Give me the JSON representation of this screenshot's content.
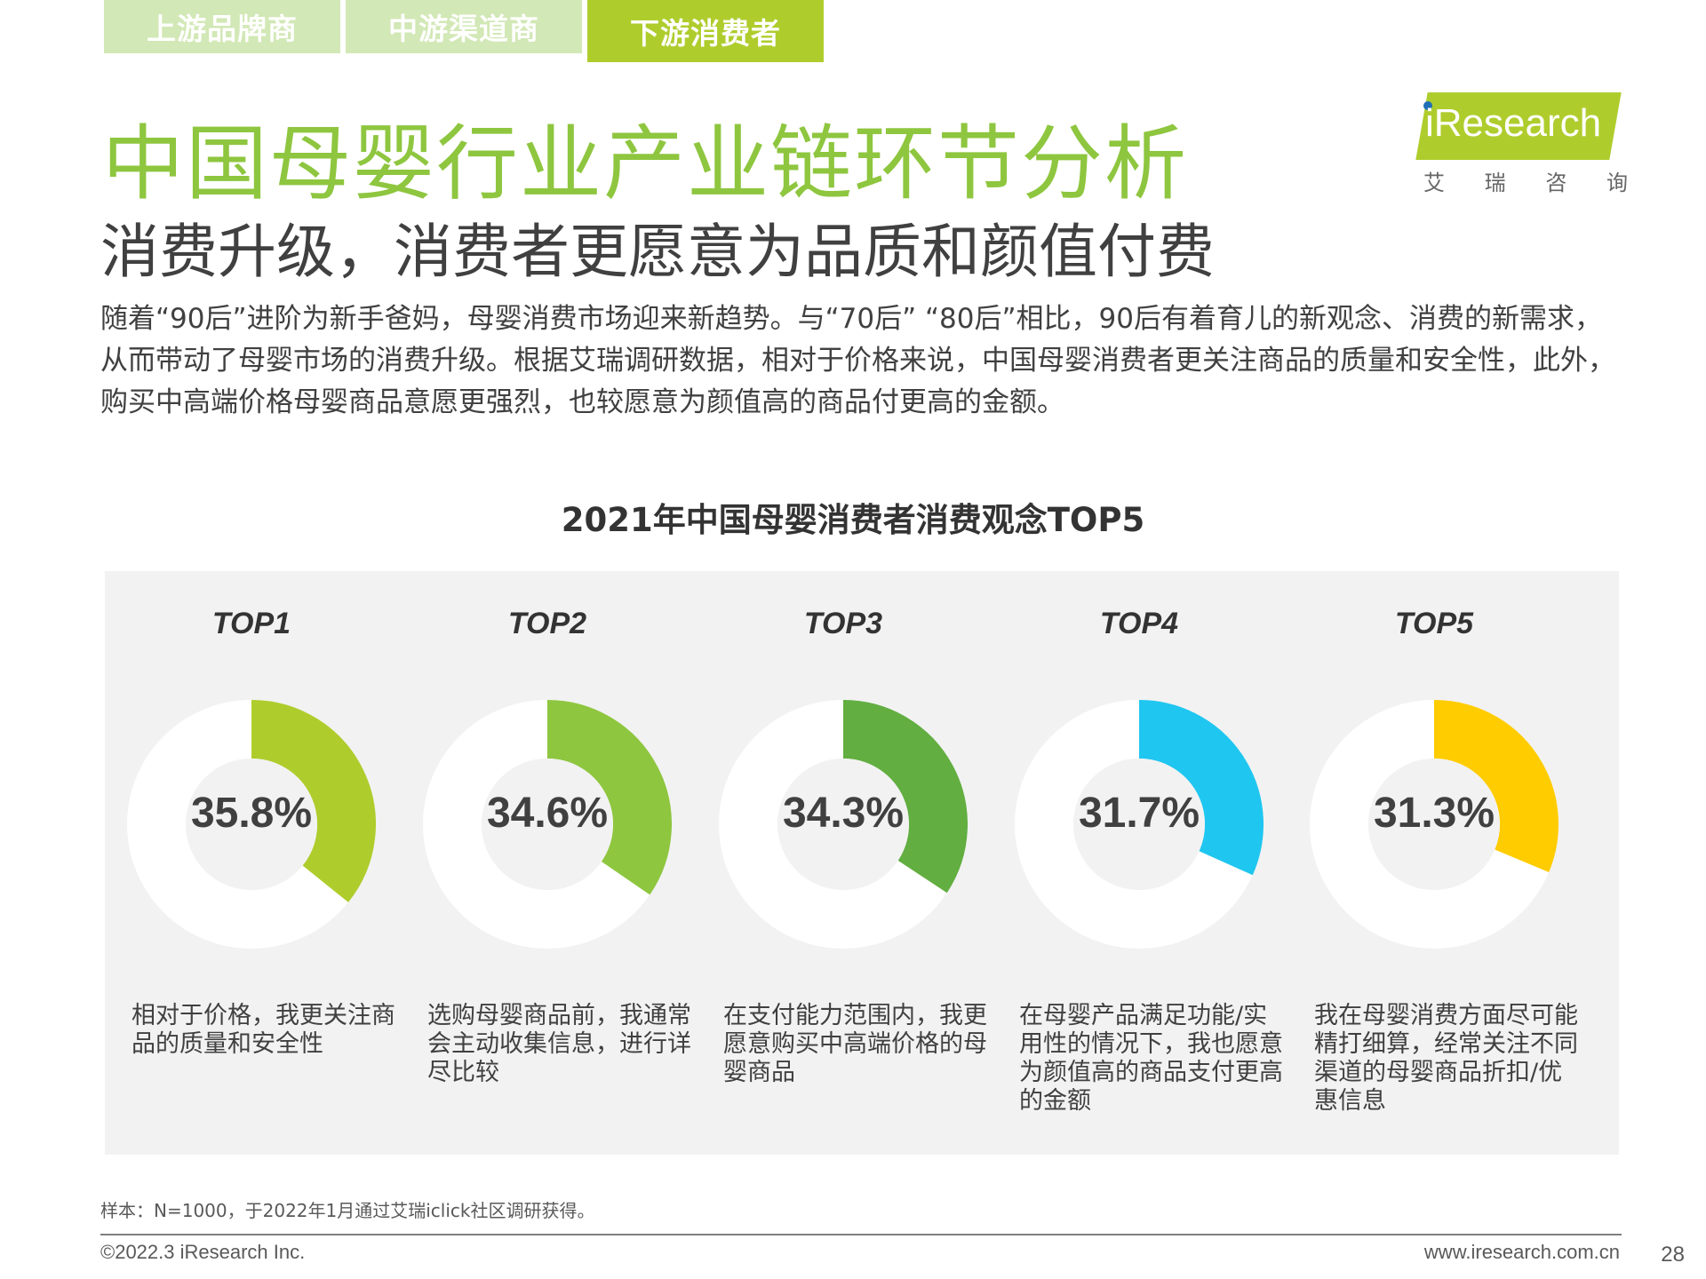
{
  "tabs": [
    {
      "label": "上游品牌商",
      "active": false
    },
    {
      "label": "中游渠道商",
      "active": false
    },
    {
      "label": "下游消费者",
      "active": true
    }
  ],
  "header": {
    "title": "中国母婴行业产业链环节分析",
    "subtitle": "消费升级，消费者更愿意为品质和颜值付费"
  },
  "logo": {
    "brand": "iResearch",
    "cn": [
      "艾",
      "瑞",
      "咨",
      "询"
    ]
  },
  "intro": "随着“90后”进阶为新手爸妈，母婴消费市场迎来新趋势。与“70后” “80后”相比，90后有着育儿的新观念、消费的新需求，从而带动了母婴市场的消费升级。根据艾瑞调研数据，相对于价格来说，中国母婴消费者更关注商品的质量和安全性，此外，购买中高端价格母婴商品意愿更强烈，也较愿意为颜值高的商品付更高的金额。",
  "chart_data": {
    "type": "pie",
    "title": "2021年中国母婴消费者消费观念TOP5",
    "categories": [
      "TOP1",
      "TOP2",
      "TOP3",
      "TOP4",
      "TOP5"
    ],
    "values": [
      35.8,
      34.6,
      34.3,
      31.7,
      31.3
    ],
    "labels": [
      "35.8%",
      "34.6%",
      "34.3%",
      "31.7%",
      "31.3%"
    ],
    "descriptions": [
      "相对于价格，我更关注商品的质量和安全性",
      "选购母婴商品前，我通常会主动收集信息，进行详尽比较",
      "在支付能力范围内，我更愿意购买中高端价格的母婴商品",
      "在母婴产品满足功能/实用性的情况下，我也愿意为颜值高的商品支付更高的金额",
      "我在母婴消费方面尽可能精打细算，经常关注不同渠道的母婴商品折扣/优惠信息"
    ],
    "colors": [
      "#aecd2d",
      "#8ec63f",
      "#62ae41",
      "#1fc6f0",
      "#ffcc00"
    ],
    "track_color": "#ffffff"
  },
  "footer": {
    "note": "样本：N=1000，于2022年1月通过艾瑞iclick社区调研获得。",
    "copyright": "©2022.3 iResearch Inc.",
    "website": "www.iresearch.com.cn",
    "page": "28"
  }
}
